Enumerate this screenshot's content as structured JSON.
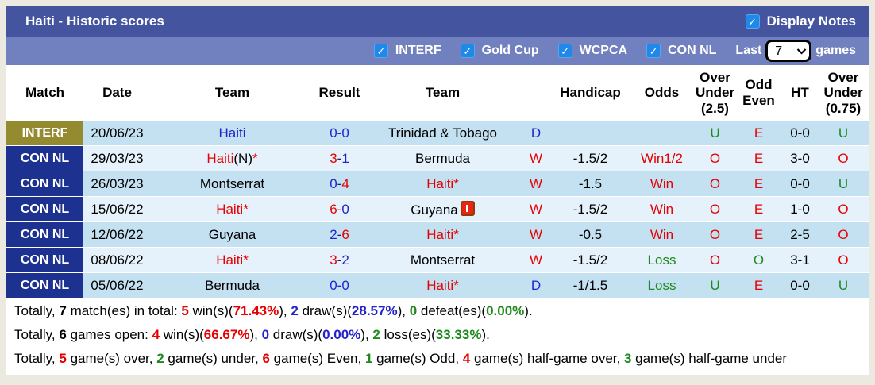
{
  "colors": {
    "red": "#e60000",
    "blue": "#2323cc",
    "green": "#1e8a1e",
    "black": "#000000",
    "dark": "#22226a",
    "title_bar": "#45549f",
    "filter_bar": "#7181bf",
    "checkbox_blue": "#1f88e8",
    "badge_interf": "#948b31",
    "badge_connl": "#1c3190",
    "row_odd": "#c4e1f2",
    "row_even": "#e6f2fb"
  },
  "header": {
    "title": "Haiti - Historic scores",
    "display_notes_label": "Display Notes",
    "display_notes_checked": true
  },
  "filter_bar": {
    "competitions": [
      {
        "label": "INTERF",
        "checked": true
      },
      {
        "label": "Gold Cup",
        "checked": true
      },
      {
        "label": "WCPCA",
        "checked": true
      },
      {
        "label": "CON NL",
        "checked": true
      }
    ],
    "last_label": "Last",
    "games_label": "games",
    "last_games_value": "7"
  },
  "table": {
    "columns": [
      {
        "key": "match",
        "label": "Match"
      },
      {
        "key": "date",
        "label": "Date"
      },
      {
        "key": "team1",
        "label": "Team"
      },
      {
        "key": "result",
        "label": "Result"
      },
      {
        "key": "team2",
        "label": "Team"
      },
      {
        "key": "letter",
        "label": ""
      },
      {
        "key": "handicap",
        "label": "Handicap"
      },
      {
        "key": "odds",
        "label": "Odds"
      },
      {
        "key": "ou25",
        "label": "Over Under (2.5)"
      },
      {
        "key": "oddeven",
        "label": "Odd Even"
      },
      {
        "key": "ht",
        "label": "HT"
      },
      {
        "key": "ou075",
        "label": "Over Under (0.75)"
      }
    ],
    "rows": [
      {
        "competition": "INTERF",
        "badge_color": "badge_interf",
        "date": "20/06/23",
        "home": [
          {
            "t": "Haiti",
            "c": "blue"
          }
        ],
        "score": [
          {
            "t": "0",
            "c": "blue"
          },
          {
            "t": "-",
            "c": "blue"
          },
          {
            "t": "0",
            "c": "blue"
          }
        ],
        "away": [
          {
            "t": "Trinidad & Tobago",
            "c": "black"
          }
        ],
        "outcome": {
          "t": "D",
          "c": "blue"
        },
        "handicap": "",
        "odds": null,
        "ou25": {
          "t": "U",
          "c": "green"
        },
        "odd_even": {
          "t": "E",
          "c": "red"
        },
        "ht": "0-0",
        "ou075": {
          "t": "U",
          "c": "green"
        }
      },
      {
        "competition": "CON NL",
        "badge_color": "badge_connl",
        "date": "29/03/23",
        "home": [
          {
            "t": "Haiti",
            "c": "red"
          },
          {
            "t": "(N)",
            "c": "black"
          },
          {
            "t": "*",
            "c": "red"
          }
        ],
        "score": [
          {
            "t": "3",
            "c": "red"
          },
          {
            "t": "-",
            "c": "dark"
          },
          {
            "t": "1",
            "c": "blue"
          }
        ],
        "away": [
          {
            "t": "Bermuda",
            "c": "black"
          }
        ],
        "outcome": {
          "t": "W",
          "c": "red"
        },
        "handicap": "-1.5/2",
        "odds": {
          "t": "Win1/2",
          "c": "red"
        },
        "ou25": {
          "t": "O",
          "c": "red"
        },
        "odd_even": {
          "t": "E",
          "c": "red"
        },
        "ht": "3-0",
        "ou075": {
          "t": "O",
          "c": "red"
        }
      },
      {
        "competition": "CON NL",
        "badge_color": "badge_connl",
        "date": "26/03/23",
        "home": [
          {
            "t": "Montserrat",
            "c": "black"
          }
        ],
        "score": [
          {
            "t": "0",
            "c": "blue"
          },
          {
            "t": "-",
            "c": "dark"
          },
          {
            "t": "4",
            "c": "red"
          }
        ],
        "away": [
          {
            "t": "Haiti*",
            "c": "red"
          }
        ],
        "outcome": {
          "t": "W",
          "c": "red"
        },
        "handicap": "-1.5",
        "odds": {
          "t": "Win",
          "c": "red"
        },
        "ou25": {
          "t": "O",
          "c": "red"
        },
        "odd_even": {
          "t": "E",
          "c": "red"
        },
        "ht": "0-0",
        "ou075": {
          "t": "U",
          "c": "green"
        }
      },
      {
        "competition": "CON NL",
        "badge_color": "badge_connl",
        "date": "15/06/22",
        "home": [
          {
            "t": "Haiti*",
            "c": "red"
          }
        ],
        "score": [
          {
            "t": "6",
            "c": "red"
          },
          {
            "t": "-",
            "c": "dark"
          },
          {
            "t": "0",
            "c": "blue"
          }
        ],
        "away": [
          {
            "t": "Guyana",
            "c": "black"
          },
          {
            "icon": "red-card-icon"
          }
        ],
        "outcome": {
          "t": "W",
          "c": "red"
        },
        "handicap": "-1.5/2",
        "odds": {
          "t": "Win",
          "c": "red"
        },
        "ou25": {
          "t": "O",
          "c": "red"
        },
        "odd_even": {
          "t": "E",
          "c": "red"
        },
        "ht": "1-0",
        "ou075": {
          "t": "O",
          "c": "red"
        }
      },
      {
        "competition": "CON NL",
        "badge_color": "badge_connl",
        "date": "12/06/22",
        "home": [
          {
            "t": "Guyana",
            "c": "black"
          }
        ],
        "score": [
          {
            "t": "2",
            "c": "blue"
          },
          {
            "t": "-",
            "c": "dark"
          },
          {
            "t": "6",
            "c": "red"
          }
        ],
        "away": [
          {
            "t": "Haiti*",
            "c": "red"
          }
        ],
        "outcome": {
          "t": "W",
          "c": "red"
        },
        "handicap": "-0.5",
        "odds": {
          "t": "Win",
          "c": "red"
        },
        "ou25": {
          "t": "O",
          "c": "red"
        },
        "odd_even": {
          "t": "E",
          "c": "red"
        },
        "ht": "2-5",
        "ou075": {
          "t": "O",
          "c": "red"
        }
      },
      {
        "competition": "CON NL",
        "badge_color": "badge_connl",
        "date": "08/06/22",
        "home": [
          {
            "t": "Haiti*",
            "c": "red"
          }
        ],
        "score": [
          {
            "t": "3",
            "c": "red"
          },
          {
            "t": "-",
            "c": "dark"
          },
          {
            "t": "2",
            "c": "blue"
          }
        ],
        "away": [
          {
            "t": "Montserrat",
            "c": "black"
          }
        ],
        "outcome": {
          "t": "W",
          "c": "red"
        },
        "handicap": "-1.5/2",
        "odds": {
          "t": "Loss",
          "c": "green"
        },
        "ou25": {
          "t": "O",
          "c": "red"
        },
        "odd_even": {
          "t": "O",
          "c": "green"
        },
        "ht": "3-1",
        "ou075": {
          "t": "O",
          "c": "red"
        }
      },
      {
        "competition": "CON NL",
        "badge_color": "badge_connl",
        "date": "05/06/22",
        "home": [
          {
            "t": "Bermuda",
            "c": "black"
          }
        ],
        "score": [
          {
            "t": "0",
            "c": "blue"
          },
          {
            "t": "-",
            "c": "blue"
          },
          {
            "t": "0",
            "c": "blue"
          }
        ],
        "away": [
          {
            "t": "Haiti*",
            "c": "red"
          }
        ],
        "outcome": {
          "t": "D",
          "c": "blue"
        },
        "handicap": "-1/1.5",
        "odds": {
          "t": "Loss",
          "c": "green"
        },
        "ou25": {
          "t": "U",
          "c": "green"
        },
        "odd_even": {
          "t": "E",
          "c": "red"
        },
        "ht": "0-0",
        "ou075": {
          "t": "U",
          "c": "green"
        }
      }
    ]
  },
  "summary": [
    [
      {
        "t": "Totally, ",
        "c": "black"
      },
      {
        "t": "7",
        "c": "black",
        "b": true
      },
      {
        "t": " match(es) in total: ",
        "c": "black"
      },
      {
        "t": "5",
        "c": "red",
        "b": true
      },
      {
        "t": " win(s)(",
        "c": "black"
      },
      {
        "t": "71.43%",
        "c": "red",
        "b": true
      },
      {
        "t": "), ",
        "c": "black"
      },
      {
        "t": "2",
        "c": "blue",
        "b": true
      },
      {
        "t": " draw(s)(",
        "c": "black"
      },
      {
        "t": "28.57%",
        "c": "blue",
        "b": true
      },
      {
        "t": "), ",
        "c": "black"
      },
      {
        "t": "0",
        "c": "green",
        "b": true
      },
      {
        "t": " defeat(es)(",
        "c": "black"
      },
      {
        "t": "0.00%",
        "c": "green",
        "b": true
      },
      {
        "t": ").",
        "c": "black"
      }
    ],
    [
      {
        "t": "Totally, ",
        "c": "black"
      },
      {
        "t": "6",
        "c": "black",
        "b": true
      },
      {
        "t": " games open: ",
        "c": "black"
      },
      {
        "t": "4",
        "c": "red",
        "b": true
      },
      {
        "t": " win(s)(",
        "c": "black"
      },
      {
        "t": "66.67%",
        "c": "red",
        "b": true
      },
      {
        "t": "), ",
        "c": "black"
      },
      {
        "t": "0",
        "c": "blue",
        "b": true
      },
      {
        "t": " draw(s)(",
        "c": "black"
      },
      {
        "t": "0.00%",
        "c": "blue",
        "b": true
      },
      {
        "t": "), ",
        "c": "black"
      },
      {
        "t": "2",
        "c": "green",
        "b": true
      },
      {
        "t": " loss(es)(",
        "c": "black"
      },
      {
        "t": "33.33%",
        "c": "green",
        "b": true
      },
      {
        "t": ").",
        "c": "black"
      }
    ],
    [
      {
        "t": "Totally, ",
        "c": "black"
      },
      {
        "t": "5",
        "c": "red",
        "b": true
      },
      {
        "t": " game(s) over, ",
        "c": "black"
      },
      {
        "t": "2",
        "c": "green",
        "b": true
      },
      {
        "t": " game(s) under, ",
        "c": "black"
      },
      {
        "t": "6",
        "c": "red",
        "b": true
      },
      {
        "t": " game(s) Even, ",
        "c": "black"
      },
      {
        "t": "1",
        "c": "green",
        "b": true
      },
      {
        "t": " game(s) Odd, ",
        "c": "black"
      },
      {
        "t": "4",
        "c": "red",
        "b": true
      },
      {
        "t": " game(s) half-game over, ",
        "c": "black"
      },
      {
        "t": "3",
        "c": "green",
        "b": true
      },
      {
        "t": " game(s) half-game under",
        "c": "black"
      }
    ]
  ]
}
